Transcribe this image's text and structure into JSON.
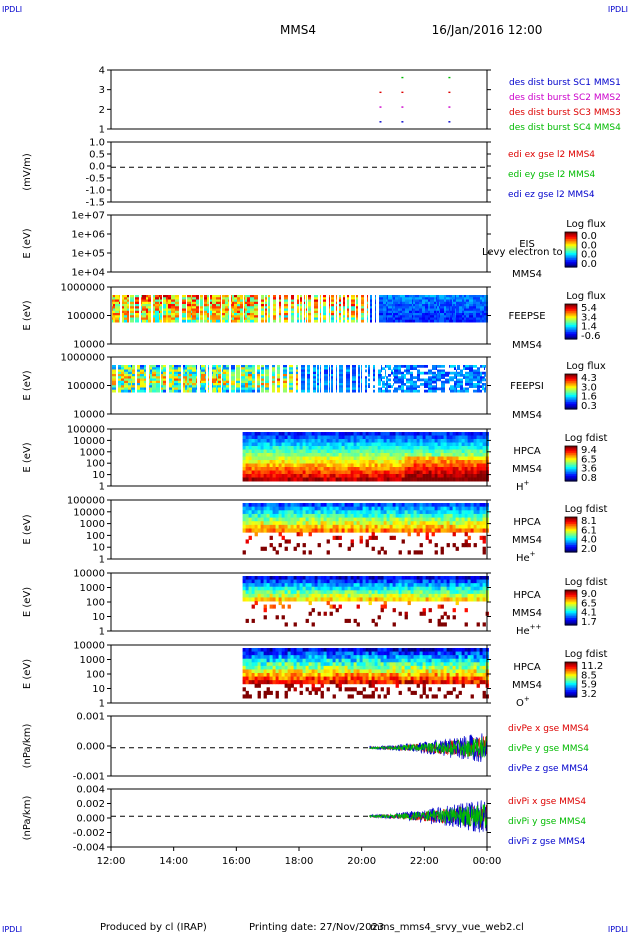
{
  "header": {
    "corner_left": "IPDLI",
    "corner_right": "IPDLI",
    "spacecraft": "MMS4",
    "datetime": "16/Jan/2016 12:00"
  },
  "footer": {
    "produced_by": "Produced by cl (IRAP)",
    "printing_date": "Printing date: 27/Nov/2023",
    "script": "mms_mms4_srvy_vue_web2.cl",
    "corner_left": "IPDLI",
    "corner_right": "IPDLI"
  },
  "colors": {
    "mms1": "#0000cc",
    "mms2": "#cc00cc",
    "mms3": "#dd0000",
    "mms4": "#00bb00",
    "x": "#dd0000",
    "y": "#00bb00",
    "z": "#0000cc"
  },
  "chart_data": [
    {
      "type": "scatter",
      "id": "burst",
      "yticks": [
        "4",
        "3",
        "2",
        "1"
      ],
      "ylim": [
        0.5,
        4.5
      ],
      "series": [
        {
          "name": "des dist burst SC1 MMS1",
          "y": 1,
          "color": "#0000cc",
          "x": [
            20.6,
            21.3,
            22.8
          ]
        },
        {
          "name": "des dist burst SC2 MMS2",
          "y": 2,
          "color": "#cc00cc",
          "x": [
            20.6,
            21.3,
            22.8
          ]
        },
        {
          "name": "des dist burst SC3 MMS3",
          "y": 3,
          "color": "#dd0000",
          "x": [
            20.6,
            21.3,
            22.8
          ]
        },
        {
          "name": "des dist burst SC4 MMS4",
          "y": 4,
          "color": "#00bb00",
          "x": [
            21.3,
            22.8
          ]
        }
      ]
    },
    {
      "type": "line",
      "id": "edi",
      "ylabel": "(mV/m)",
      "yticks": [
        "1.0",
        "0.5",
        "0.0",
        "-0.5",
        "-1.0",
        "-1.5"
      ],
      "ylim": [
        -1.5,
        1.0
      ],
      "series": [
        {
          "name": "edi ex gse l2 MMS4",
          "color": "#dd0000"
        },
        {
          "name": "edi ey gse l2 MMS4",
          "color": "#00bb00"
        },
        {
          "name": "edi ez gse l2 MMS4",
          "color": "#0000cc"
        }
      ]
    },
    {
      "type": "heatmap",
      "id": "eis",
      "ylabel": "E (eV)",
      "yticks": [
        "1e+07",
        "1e+06",
        "1e+05",
        "1e+04"
      ],
      "ylim": [
        10000,
        10000000
      ],
      "instrument": "EIS",
      "spacecraft": "MMS4",
      "overlay_text": "Levy electron to",
      "colorbar_title": "Log flux",
      "colorbar_ticks": [
        "0.0",
        "0.0",
        "0.0",
        "0.0"
      ]
    },
    {
      "type": "heatmap",
      "id": "feepse",
      "ylabel": "E (eV)",
      "yticks": [
        "1000000",
        "100000",
        "10000"
      ],
      "ylim": [
        10000,
        1000000
      ],
      "instrument": "FEEPSE",
      "spacecraft": "MMS4",
      "colorbar_title": "Log flux",
      "colorbar_ticks": [
        "5.4",
        "3.4",
        "1.4",
        "-0.6"
      ]
    },
    {
      "type": "heatmap",
      "id": "feepsi",
      "ylabel": "E (eV)",
      "yticks": [
        "1000000",
        "100000",
        "10000"
      ],
      "ylim": [
        10000,
        1000000
      ],
      "instrument": "FEEPSI",
      "spacecraft": "MMS4",
      "colorbar_title": "Log flux",
      "colorbar_ticks": [
        "4.3",
        "3.0",
        "1.6",
        "0.3"
      ]
    },
    {
      "type": "heatmap",
      "id": "hpca_h",
      "ylabel": "E (eV)",
      "yticks": [
        "100000",
        "10000",
        "1000",
        "100",
        "10",
        "1"
      ],
      "ylim": [
        1,
        100000
      ],
      "instrument": "HPCA",
      "spacecraft": "MMS4",
      "species": "H",
      "species_sup": "+",
      "colorbar_title": "Log fdist",
      "colorbar_ticks": [
        "9.4",
        "6.5",
        "3.6",
        "0.8"
      ]
    },
    {
      "type": "heatmap",
      "id": "hpca_he",
      "ylabel": "E (eV)",
      "yticks": [
        "100000",
        "10000",
        "1000",
        "100",
        "10",
        "1"
      ],
      "ylim": [
        1,
        100000
      ],
      "instrument": "HPCA",
      "spacecraft": "MMS4",
      "species": "He",
      "species_sup": "+",
      "colorbar_title": "Log fdist",
      "colorbar_ticks": [
        "8.1",
        "6.1",
        "4.0",
        "2.0"
      ]
    },
    {
      "type": "heatmap",
      "id": "hpca_he2",
      "ylabel": "E (eV)",
      "yticks": [
        "10000",
        "1000",
        "100",
        "10",
        "1"
      ],
      "ylim": [
        1,
        10000
      ],
      "instrument": "HPCA",
      "spacecraft": "MMS4",
      "species": "He",
      "species_sup": "++",
      "colorbar_title": "Log fdist",
      "colorbar_ticks": [
        "9.0",
        "6.5",
        "4.1",
        "1.7"
      ]
    },
    {
      "type": "heatmap",
      "id": "hpca_o",
      "ylabel": "E (eV)",
      "yticks": [
        "10000",
        "1000",
        "100",
        "10",
        "1"
      ],
      "ylim": [
        1,
        10000
      ],
      "instrument": "HPCA",
      "spacecraft": "MMS4",
      "species": "O",
      "species_sup": "+",
      "colorbar_title": "Log fdist",
      "colorbar_ticks": [
        "11.2",
        "8.5",
        "5.9",
        "3.2"
      ]
    },
    {
      "type": "line",
      "id": "divpe",
      "ylabel": "(nPa/km)",
      "yticks": [
        "0.001",
        "0.000",
        "-0.001"
      ],
      "ylim": [
        -0.0015,
        0.0015
      ],
      "series": [
        {
          "name": "divPe x gse MMS4",
          "color": "#dd0000"
        },
        {
          "name": "divPe y gse MMS4",
          "color": "#00bb00"
        },
        {
          "name": "divPe z gse MMS4",
          "color": "#0000cc"
        }
      ]
    },
    {
      "type": "line",
      "id": "divpi",
      "ylabel": "(nPa/km)",
      "yticks": [
        "0.004",
        "0.002",
        "0.000",
        "-0.002",
        "-0.004"
      ],
      "ylim": [
        -0.005,
        0.0045
      ],
      "series": [
        {
          "name": "divPi x gse MMS4",
          "color": "#dd0000"
        },
        {
          "name": "divPi y gse MMS4",
          "color": "#00bb00"
        },
        {
          "name": "divPi z gse MMS4",
          "color": "#0000cc"
        }
      ]
    }
  ],
  "x_axis": {
    "ticks": [
      "12:00",
      "14:00",
      "16:00",
      "18:00",
      "20:00",
      "22:00",
      "00:00"
    ],
    "xlim_hours": [
      12,
      24
    ]
  }
}
